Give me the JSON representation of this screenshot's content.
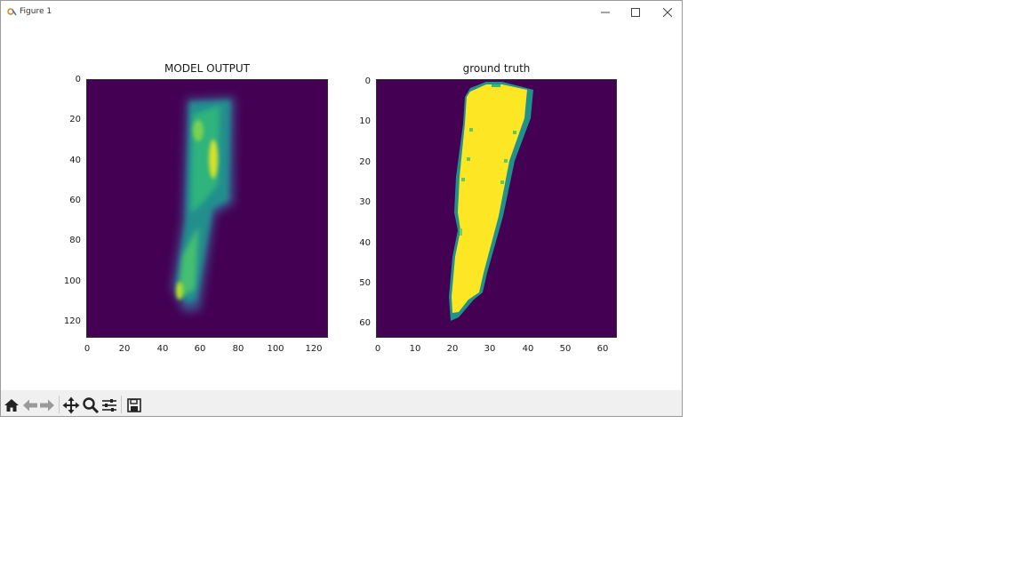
{
  "window": {
    "title": "Figure 1",
    "controls": [
      "minimize-icon",
      "maximize-icon",
      "close-icon"
    ]
  },
  "toolbar": {
    "buttons": [
      "home-icon",
      "back-arrow-icon",
      "forward-arrow-icon",
      "pan-move-icon",
      "zoom-magnifier-icon",
      "configure-subplots-icon",
      "save-floppy-icon"
    ]
  },
  "colors": {
    "background": "#440154",
    "foreground": "#fde725"
  },
  "chart_data": [
    {
      "type": "heatmap",
      "title": "MODEL OUTPUT",
      "xlim": [
        0,
        128
      ],
      "ylim": [
        128,
        0
      ],
      "xticks": [
        "0",
        "20",
        "40",
        "60",
        "80",
        "100",
        "120"
      ],
      "yticks": [
        "0",
        "20",
        "40",
        "60",
        "80",
        "100",
        "120"
      ],
      "colormap": "viridis"
    },
    {
      "type": "heatmap",
      "title": "ground truth",
      "xlim": [
        0,
        64
      ],
      "ylim": [
        64,
        0
      ],
      "xticks": [
        "0",
        "10",
        "20",
        "30",
        "40",
        "50",
        "60"
      ],
      "yticks": [
        "0",
        "10",
        "20",
        "30",
        "40",
        "50",
        "60"
      ],
      "colormap": "viridis"
    }
  ]
}
